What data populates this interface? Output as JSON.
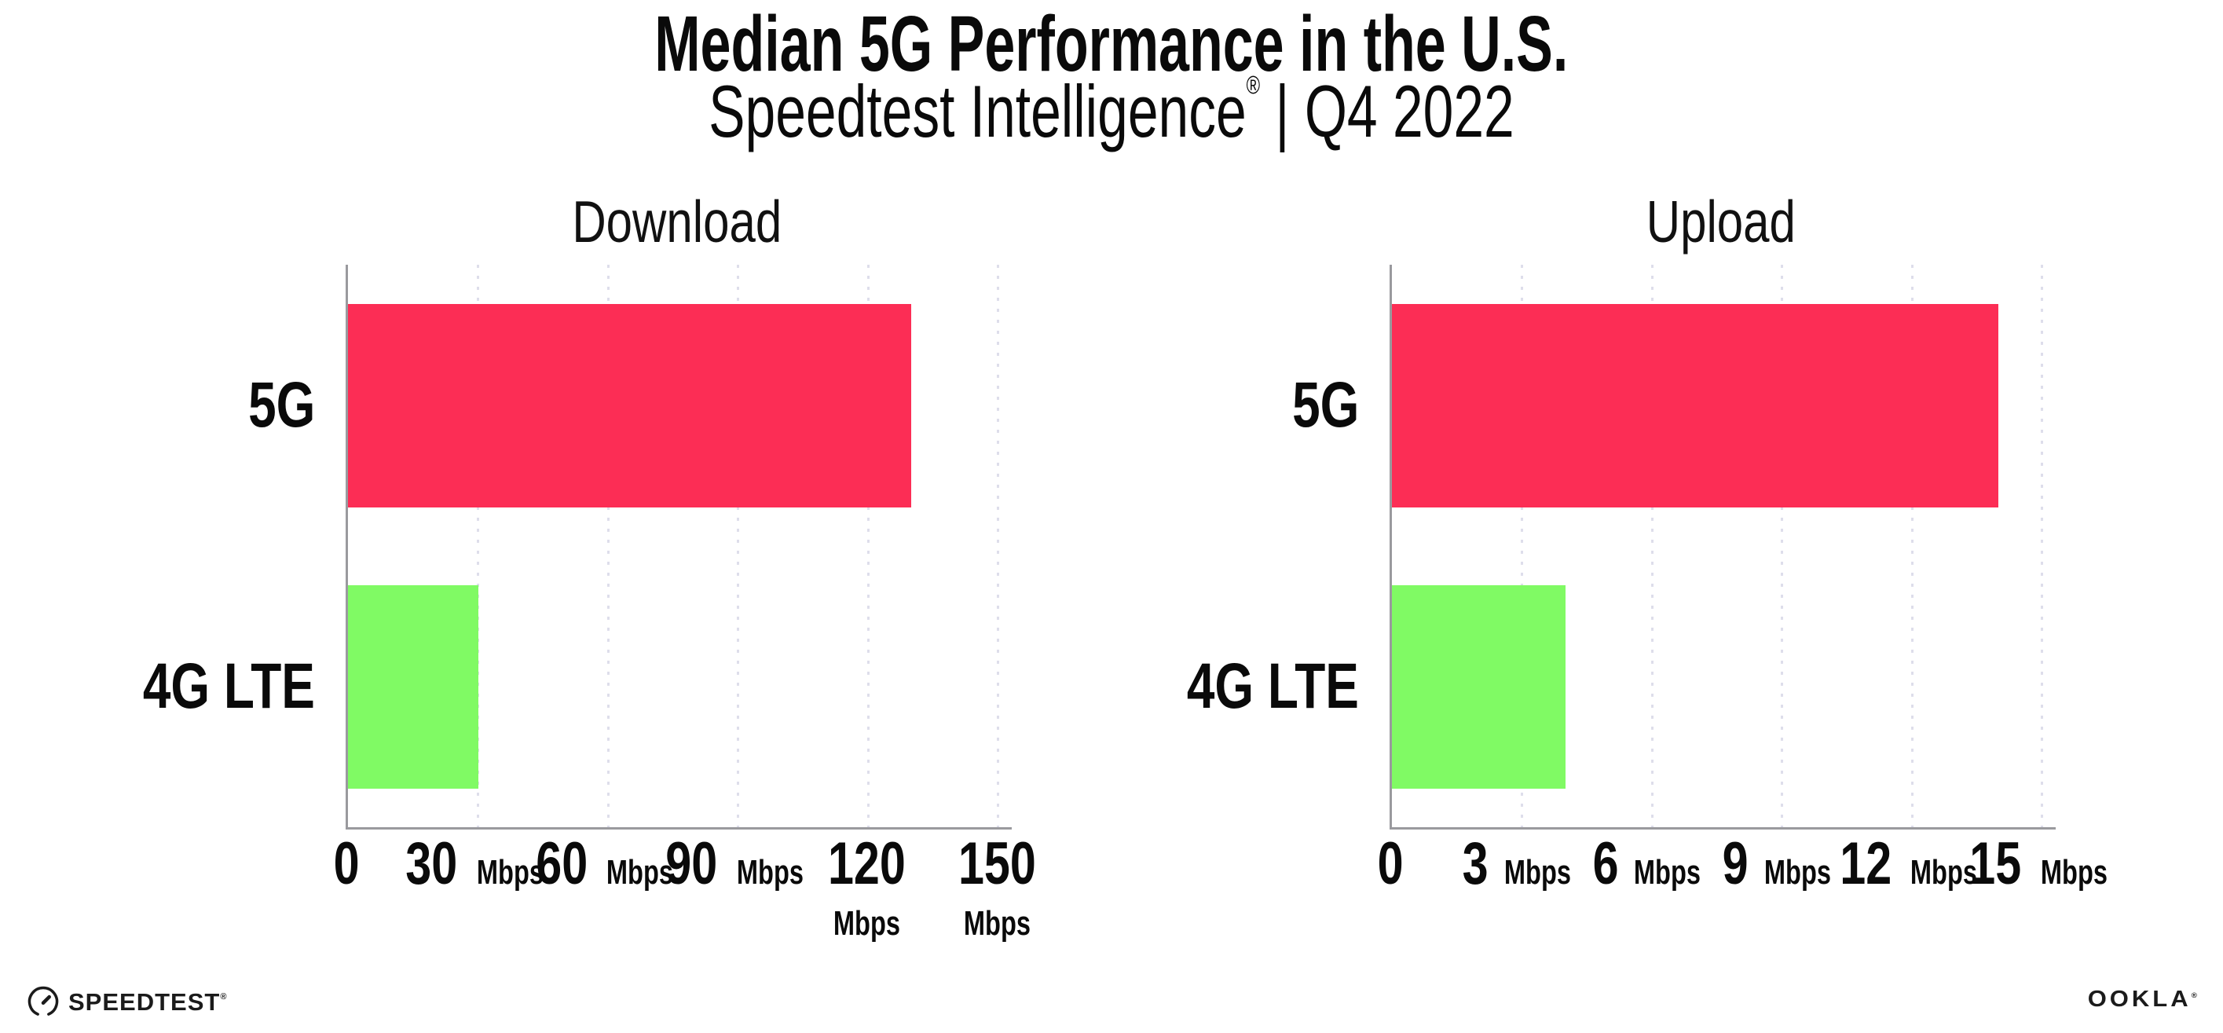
{
  "header": {
    "title": "Median 5G Performance in the U.S.",
    "subtitle_brand": "Speedtest Intelligence",
    "subtitle_reg": "®",
    "subtitle_rest": " | Q4 2022"
  },
  "footer": {
    "speedtest_label": "SPEEDTEST",
    "speedtest_reg": "®",
    "ookla_label": "OOKLA",
    "ookla_reg": "®"
  },
  "colors": {
    "bar_5g": "#FC2D55",
    "bar_4g_lte": "#80FA64",
    "grid": "#DEDEEB",
    "axis": "#9A9A9E",
    "text": "#0A0A0A"
  },
  "chart_data": [
    {
      "type": "bar",
      "orientation": "horizontal",
      "title": "Download",
      "categories": [
        "5G",
        "4G LTE"
      ],
      "values": [
        130,
        30
      ],
      "unit": "Mbps",
      "xlim": [
        0,
        150
      ],
      "xticks": [
        0,
        30,
        60,
        90,
        120,
        150
      ],
      "grid": "vertical-dotted",
      "legend": "none",
      "bar_colors": [
        "#FC2D55",
        "#80FA64"
      ]
    },
    {
      "type": "bar",
      "orientation": "horizontal",
      "title": "Upload",
      "categories": [
        "5G",
        "4G LTE"
      ],
      "values": [
        14,
        4
      ],
      "unit": "Mbps",
      "xlim": [
        0,
        15
      ],
      "xticks": [
        0,
        3,
        6,
        9,
        12,
        15
      ],
      "grid": "vertical-dotted",
      "legend": "none",
      "bar_colors": [
        "#FC2D55",
        "#80FA64"
      ]
    }
  ]
}
